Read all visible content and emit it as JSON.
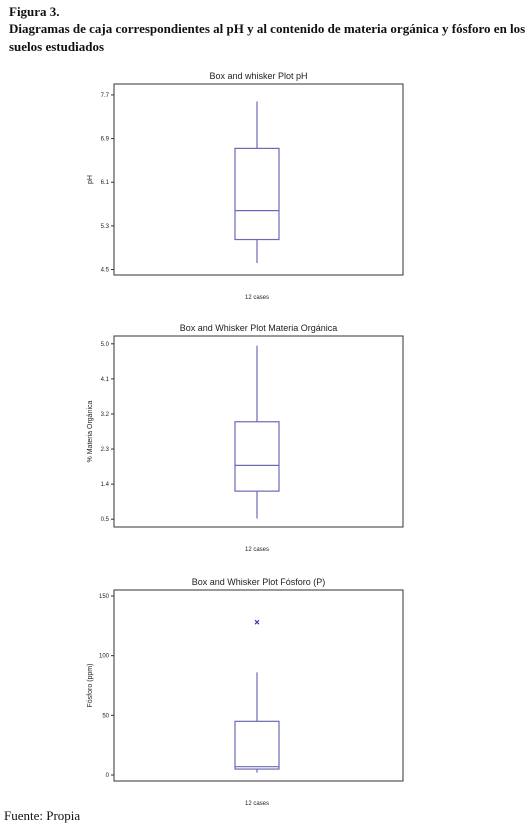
{
  "caption": {
    "label": "Figura 3.",
    "title": "Diagramas de caja correspondientes al pH y al contenido de materia orgánica y fósforo en los suelos estudiados"
  },
  "source": "Fuente: Propia",
  "colors": {
    "box": "#6a6ab8",
    "outlier": "#3a3aa8",
    "frame": "#333333"
  },
  "chart_data": [
    {
      "type": "boxplot",
      "title": "Box and whisker Plot  pH",
      "ylabel": "pH",
      "xlabel": "12 cases",
      "ylim": [
        4.4,
        7.9
      ],
      "yticks": [
        4.5,
        5.3,
        6.1,
        6.9,
        7.7
      ],
      "ytick_labels": [
        "4.5",
        "5.3",
        "6.1",
        "6.9",
        "7.7"
      ],
      "grid": false,
      "box": {
        "whisker_low": 4.62,
        "q1": 5.05,
        "median": 5.58,
        "q3": 6.72,
        "whisker_high": 7.58
      },
      "outliers": []
    },
    {
      "type": "boxplot",
      "title": "Box and Whisker Plot Materia Orgánica",
      "ylabel": "% Materia Orgánica",
      "xlabel": "12 cases",
      "ylim": [
        0.3,
        5.2
      ],
      "yticks": [
        0.5,
        1.4,
        2.3,
        3.2,
        4.1,
        5.0
      ],
      "ytick_labels": [
        "0.5",
        "1.4",
        "2.3",
        "3.2",
        "4.1",
        "5.0"
      ],
      "grid": false,
      "box": {
        "whisker_low": 0.52,
        "q1": 1.22,
        "median": 1.88,
        "q3": 3.0,
        "whisker_high": 4.95
      },
      "outliers": []
    },
    {
      "type": "boxplot",
      "title": "Box and Whisker Plot Fósforo (P)",
      "ylabel": "Fósforo (ppm)",
      "xlabel": "12 cases",
      "ylim": [
        -5,
        155
      ],
      "yticks": [
        0,
        50,
        100,
        150
      ],
      "ytick_labels": [
        "0",
        "50",
        "100",
        "150"
      ],
      "grid": false,
      "box": {
        "whisker_low": 2,
        "q1": 5,
        "median": 7,
        "q3": 45,
        "whisker_high": 86
      },
      "outliers": [
        128
      ]
    }
  ]
}
